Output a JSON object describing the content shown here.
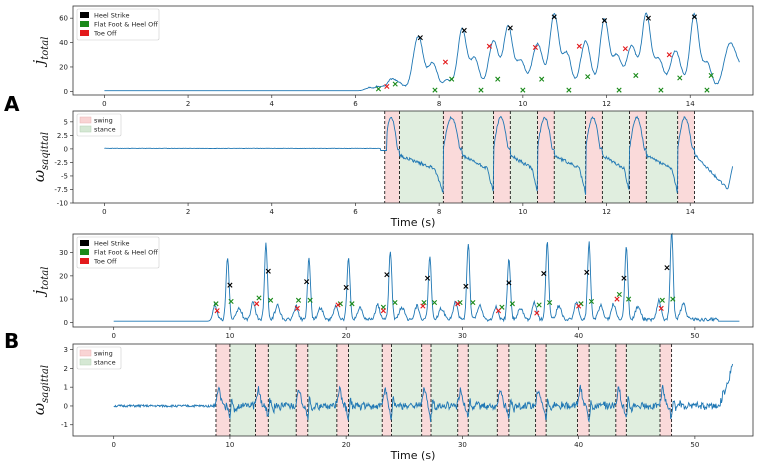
{
  "panel_letters": [
    "A",
    "B"
  ],
  "chart_data": [
    {
      "id": "A1",
      "type": "line",
      "panel": "A",
      "ylabel": "j_total",
      "ylabel_main": "j",
      "ylabel_sub": "total",
      "xlabel": "",
      "xlim": [
        -0.75,
        15.5
      ],
      "ylim": [
        -3,
        70
      ],
      "xticks": [
        0,
        2,
        4,
        6,
        8,
        10,
        12,
        14
      ],
      "yticks": [
        0,
        20,
        40,
        60
      ],
      "legend": {
        "position": "top-left",
        "entries": [
          {
            "label": "Heel Strike",
            "color": "#000000"
          },
          {
            "label": "Flat Foot & Heel Off",
            "color": "#1a8a1a"
          },
          {
            "label": "Toe Off",
            "color": "#e31a1c"
          }
        ]
      },
      "baseline": 0.5,
      "bumps": [
        [
          6.3,
          2,
          0.12
        ],
        [
          6.55,
          3,
          0.12
        ],
        [
          6.85,
          8,
          0.15
        ],
        [
          7.05,
          5,
          0.15
        ],
        [
          7.5,
          44,
          0.17
        ],
        [
          7.85,
          22,
          0.15
        ],
        [
          8.2,
          8,
          0.15
        ],
        [
          8.55,
          50,
          0.15
        ],
        [
          8.85,
          26,
          0.15
        ],
        [
          9.3,
          40,
          0.17
        ],
        [
          9.65,
          52,
          0.15
        ],
        [
          9.95,
          24,
          0.15
        ],
        [
          10.35,
          38,
          0.18
        ],
        [
          10.75,
          62,
          0.15
        ],
        [
          11.05,
          30,
          0.15
        ],
        [
          11.5,
          40,
          0.17
        ],
        [
          11.95,
          58,
          0.15
        ],
        [
          12.25,
          28,
          0.15
        ],
        [
          12.6,
          36,
          0.17
        ],
        [
          12.95,
          62,
          0.15
        ],
        [
          13.25,
          25,
          0.15
        ],
        [
          13.65,
          32,
          0.18
        ],
        [
          14.1,
          62,
          0.15
        ],
        [
          14.4,
          22,
          0.15
        ],
        [
          14.95,
          38,
          0.2
        ],
        [
          15.2,
          12,
          0.15
        ]
      ],
      "markers": {
        "heel_strike": [
          [
            7.55,
            44
          ],
          [
            8.6,
            50
          ],
          [
            9.7,
            52
          ],
          [
            10.75,
            61
          ],
          [
            11.95,
            58
          ],
          [
            13.0,
            60
          ],
          [
            14.1,
            61
          ]
        ],
        "flat_foot_heel_off": [
          [
            6.55,
            2
          ],
          [
            6.95,
            6
          ],
          [
            7.9,
            1
          ],
          [
            8.3,
            10
          ],
          [
            9.0,
            1
          ],
          [
            9.4,
            10
          ],
          [
            10.0,
            1
          ],
          [
            10.45,
            10
          ],
          [
            11.1,
            1
          ],
          [
            11.55,
            12
          ],
          [
            12.3,
            1
          ],
          [
            12.7,
            13
          ],
          [
            13.3,
            1
          ],
          [
            13.75,
            11
          ],
          [
            14.4,
            1
          ],
          [
            14.5,
            13
          ]
        ],
        "toe_off": [
          [
            6.75,
            4
          ],
          [
            8.15,
            24
          ],
          [
            9.2,
            37
          ],
          [
            10.3,
            36
          ],
          [
            11.35,
            37
          ],
          [
            12.45,
            35
          ],
          [
            13.5,
            30
          ]
        ]
      }
    },
    {
      "id": "A2",
      "type": "line",
      "panel": "A",
      "ylabel": "ω_saqittal",
      "ylabel_main": "ω",
      "ylabel_sub": "saqittal",
      "xlabel": "Time (s)",
      "xlim": [
        -0.75,
        15.5
      ],
      "ylim": [
        -10,
        7
      ],
      "xticks": [
        0,
        2,
        4,
        6,
        8,
        10,
        12,
        14
      ],
      "yticks": [
        5.0,
        2.5,
        0.0,
        -2.5,
        -5.0,
        -7.5,
        -10.0
      ],
      "legend": {
        "position": "top-left",
        "entries": [
          {
            "label": "swing",
            "color": "#f9d4d4"
          },
          {
            "label": "stance",
            "color": "#d5e8d4"
          }
        ]
      },
      "swing": [
        [
          6.7,
          7.05
        ],
        [
          8.1,
          8.55
        ],
        [
          9.3,
          9.7
        ],
        [
          10.35,
          10.75
        ],
        [
          11.5,
          11.9
        ],
        [
          12.55,
          12.95
        ],
        [
          13.7,
          14.1
        ]
      ],
      "stance": [
        [
          7.05,
          8.1
        ],
        [
          8.55,
          9.3
        ],
        [
          9.7,
          10.35
        ],
        [
          10.75,
          11.5
        ],
        [
          11.9,
          12.55
        ],
        [
          12.95,
          13.7
        ]
      ]
    },
    {
      "id": "B1",
      "type": "line",
      "panel": "B",
      "ylabel": "j_total",
      "ylabel_main": "j",
      "ylabel_sub": "total",
      "xlabel": "",
      "xlim": [
        -3.5,
        55
      ],
      "ylim": [
        -2,
        38
      ],
      "xticks": [
        0,
        10,
        20,
        30,
        40,
        50
      ],
      "yticks": [
        0,
        10,
        20,
        30
      ],
      "legend": {
        "position": "top-left",
        "entries": [
          {
            "label": "Heel Strike",
            "color": "#000000"
          },
          {
            "label": "Flat Foot & Heel Off",
            "color": "#1a8a1a"
          },
          {
            "label": "Toe Off",
            "color": "#e31a1c"
          }
        ]
      },
      "baseline": 0.5,
      "spikes": [
        [
          9.8,
          27
        ],
        [
          13.1,
          33
        ],
        [
          16.8,
          27
        ],
        [
          20.2,
          27
        ],
        [
          23.8,
          29
        ],
        [
          27.2,
          27
        ],
        [
          30.5,
          33
        ],
        [
          34.0,
          26
        ],
        [
          37.3,
          33
        ],
        [
          40.9,
          33
        ],
        [
          44.1,
          31
        ],
        [
          48.0,
          38
        ]
      ],
      "markers": {
        "heel_strike": [
          [
            10.0,
            16
          ],
          [
            13.3,
            22
          ],
          [
            16.6,
            17.5
          ],
          [
            20.0,
            15
          ],
          [
            23.5,
            20.5
          ],
          [
            27.0,
            19
          ],
          [
            30.3,
            15.5
          ],
          [
            34.0,
            17
          ],
          [
            37.0,
            21
          ],
          [
            40.7,
            21.5
          ],
          [
            43.9,
            19
          ],
          [
            47.6,
            23.5
          ]
        ],
        "flat_foot_heel_off": [
          [
            8.8,
            8
          ],
          [
            10.1,
            9
          ],
          [
            12.5,
            10.5
          ],
          [
            13.5,
            9.5
          ],
          [
            15.9,
            9.5
          ],
          [
            16.9,
            9.5
          ],
          [
            19.5,
            8
          ],
          [
            20.5,
            8
          ],
          [
            23.2,
            6.5
          ],
          [
            24.2,
            8.5
          ],
          [
            26.7,
            8.5
          ],
          [
            27.6,
            8.5
          ],
          [
            29.8,
            8.5
          ],
          [
            30.9,
            8.5
          ],
          [
            33.4,
            6.5
          ],
          [
            34.3,
            8
          ],
          [
            36.6,
            7.5
          ],
          [
            37.5,
            8.5
          ],
          [
            40.2,
            8
          ],
          [
            41.1,
            9
          ],
          [
            43.5,
            12
          ],
          [
            44.3,
            10
          ],
          [
            47.2,
            9.5
          ],
          [
            48.1,
            10
          ]
        ],
        "toe_off": [
          [
            8.9,
            5
          ],
          [
            12.3,
            8
          ],
          [
            15.8,
            6
          ],
          [
            19.3,
            7.5
          ],
          [
            23.2,
            5
          ],
          [
            26.6,
            7
          ],
          [
            29.6,
            8
          ],
          [
            33.1,
            5
          ],
          [
            36.4,
            4
          ],
          [
            40.0,
            7
          ],
          [
            43.3,
            10
          ],
          [
            47.1,
            6
          ]
        ]
      }
    },
    {
      "id": "B2",
      "type": "line",
      "panel": "B",
      "ylabel": "ω_sagittal",
      "ylabel_main": "ω",
      "ylabel_sub": "sagittal",
      "xlabel": "Time (s)",
      "xlim": [
        -3.5,
        55
      ],
      "ylim": [
        -1.6,
        3.3
      ],
      "xticks": [
        0,
        10,
        20,
        30,
        40,
        50
      ],
      "yticks": [
        3,
        2,
        1,
        0,
        -1
      ],
      "legend": {
        "position": "top-left",
        "entries": [
          {
            "label": "swing",
            "color": "#f9d4d4"
          },
          {
            "label": "stance",
            "color": "#d5e8d4"
          }
        ]
      },
      "swing": [
        [
          8.8,
          10.0
        ],
        [
          12.2,
          13.3
        ],
        [
          15.7,
          16.7
        ],
        [
          19.2,
          20.2
        ],
        [
          23.1,
          23.9
        ],
        [
          26.5,
          27.3
        ],
        [
          29.6,
          30.5
        ],
        [
          33.0,
          34.0
        ],
        [
          36.3,
          37.2
        ],
        [
          39.9,
          40.9
        ],
        [
          43.2,
          44.1
        ],
        [
          47.0,
          48.0
        ]
      ],
      "stance": [
        [
          10.0,
          12.2
        ],
        [
          13.3,
          15.7
        ],
        [
          16.7,
          19.2
        ],
        [
          20.2,
          23.1
        ],
        [
          23.9,
          26.5
        ],
        [
          27.3,
          29.6
        ],
        [
          30.5,
          33.0
        ],
        [
          34.0,
          36.3
        ],
        [
          37.2,
          39.9
        ],
        [
          40.9,
          43.2
        ],
        [
          44.1,
          47.0
        ]
      ]
    }
  ]
}
